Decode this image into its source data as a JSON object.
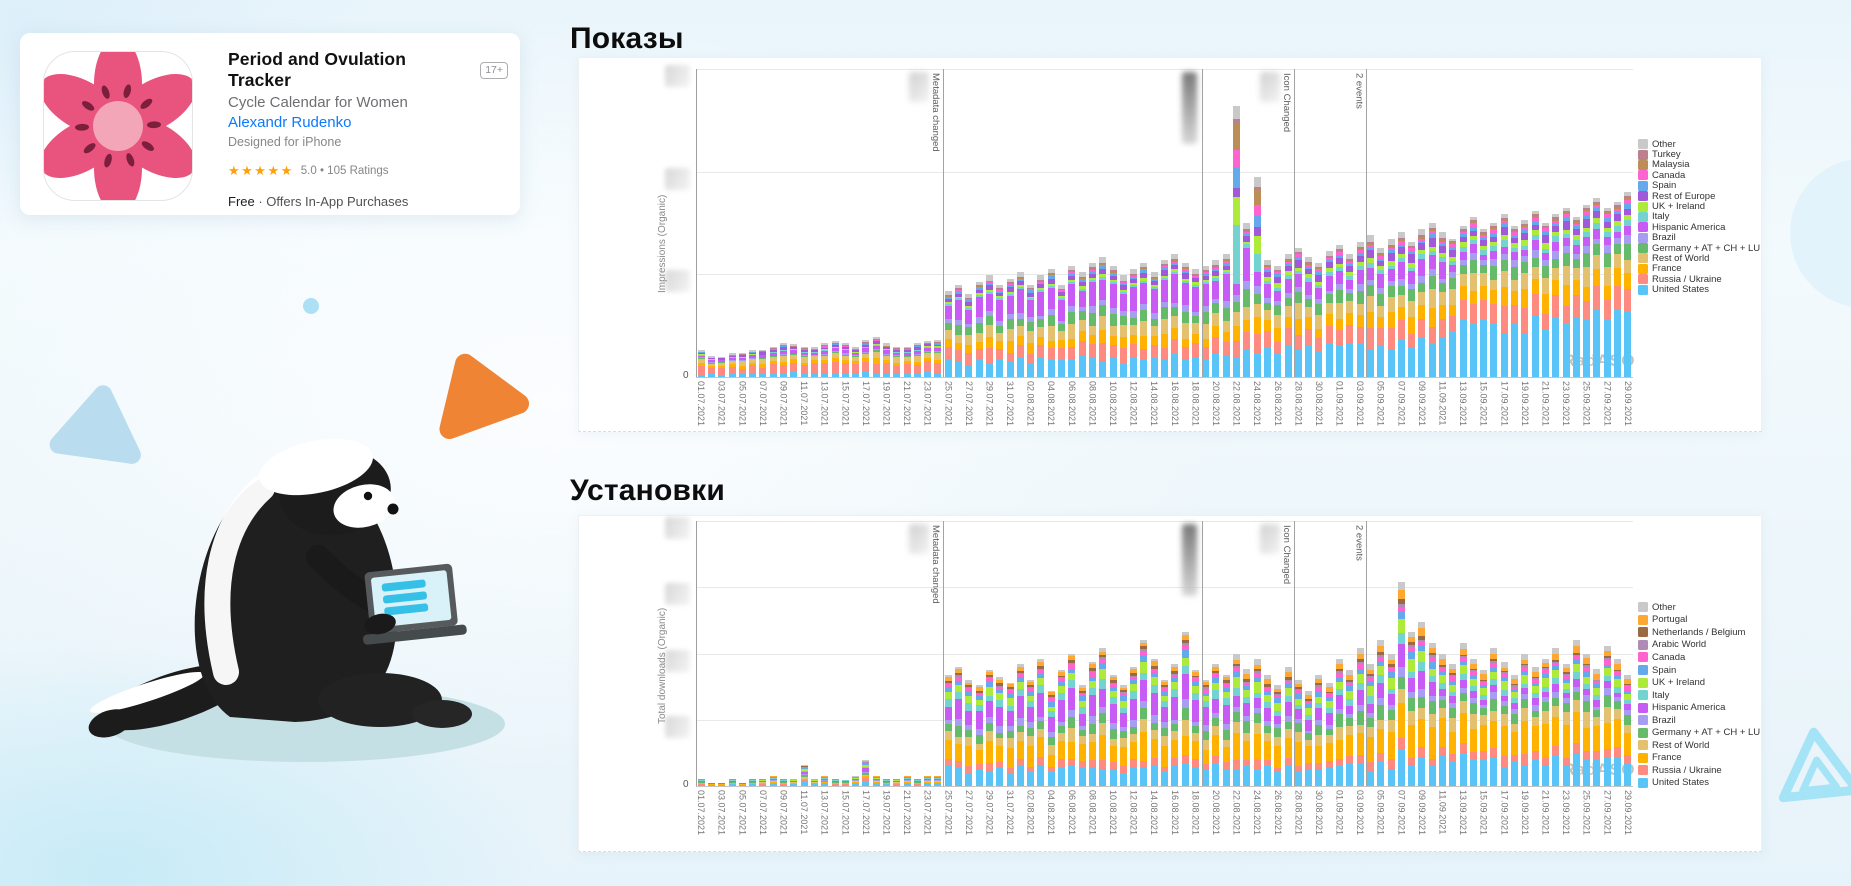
{
  "app_card": {
    "title": "Period and Ovulation Tracker",
    "age_badge": "17+",
    "subtitle": "Cycle Calendar for Women",
    "developer": "Alexandr Rudenko",
    "platform_note": "Designed for iPhone",
    "stars": "★★★★★",
    "rating_text": "5.0 • 105 Ratings",
    "price_bold": "Free",
    "price_rest": " · Offers In-App Purchases",
    "link_color": "#0a7aff",
    "star_color": "#ff9f0a",
    "flower_petal_color": "#e8547d",
    "flower_center_color": "#f2a6b7",
    "flower_seed_color": "#7c1f3d"
  },
  "sections": [
    {
      "title": "Показы"
    },
    {
      "title": "Установки"
    }
  ],
  "chart_data": [
    {
      "type": "bar",
      "stacked": true,
      "title": "Показы",
      "ylabel": "Impressions (Organic)",
      "watermark": "RadASO",
      "y_axis": {
        "zero_label": "0",
        "tick_labels_blurred": true,
        "gridline_rows": 3
      },
      "bar_count": 91,
      "x_labels": [
        "01.07.2021",
        "03.07.2021",
        "05.07.2021",
        "07.07.2021",
        "09.07.2021",
        "11.07.2021",
        "13.07.2021",
        "15.07.2021",
        "17.07.2021",
        "19.07.2021",
        "21.07.2021",
        "23.07.2021",
        "25.07.2021",
        "27.07.2021",
        "29.07.2021",
        "31.07.2021",
        "02.08.2021",
        "04.08.2021",
        "06.08.2021",
        "08.08.2021",
        "10.08.2021",
        "12.08.2021",
        "14.08.2021",
        "16.08.2021",
        "18.08.2021",
        "20.08.2021",
        "22.08.2021",
        "24.08.2021",
        "26.08.2021",
        "28.08.2021",
        "30.08.2021",
        "01.09.2021",
        "03.09.2021",
        "05.09.2021",
        "07.09.2021",
        "09.09.2021",
        "11.09.2021",
        "13.09.2021",
        "15.09.2021",
        "17.09.2021",
        "19.09.2021",
        "21.09.2021",
        "23.09.2021",
        "25.09.2021",
        "27.09.2021",
        "29.09.2021"
      ],
      "legend": [
        {
          "label": "Other",
          "color": "#c9c9c9"
        },
        {
          "label": "Turkey",
          "color": "#bb7f8d"
        },
        {
          "label": "Malaysia",
          "color": "#bc8d56"
        },
        {
          "label": "Canada",
          "color": "#ff63cf"
        },
        {
          "label": "Spain",
          "color": "#64a9ec"
        },
        {
          "label": "Rest of Europe",
          "color": "#a259d9"
        },
        {
          "label": "UK + Ireland",
          "color": "#aeea3a"
        },
        {
          "label": "Italy",
          "color": "#72d3d0"
        },
        {
          "label": "Hispanic America",
          "color": "#c95bf5"
        },
        {
          "label": "Brazil",
          "color": "#a79ef2"
        },
        {
          "label": "Germany + AT + CH + LU",
          "color": "#66bb6a"
        },
        {
          "label": "Rest of World",
          "color": "#e3c16f"
        },
        {
          "label": "France",
          "color": "#ffb300"
        },
        {
          "label": "Russia / Ukraine",
          "color": "#ff8a80"
        },
        {
          "label": "United States",
          "color": "#59c4f7"
        }
      ],
      "annotations": [
        {
          "position_day": 23.5,
          "label": "Metadata changed",
          "blur": "light"
        },
        {
          "position_day": 48.6,
          "label": "",
          "blur": "dark"
        },
        {
          "position_day": 57.6,
          "label": "Icon Changed",
          "blur": "light"
        },
        {
          "position_day": 64.6,
          "label": "2 events",
          "blur": "none"
        }
      ],
      "totals": [
        9,
        7,
        7,
        8,
        8,
        9,
        9,
        10,
        11,
        11,
        10,
        10,
        11,
        12,
        11,
        10,
        12,
        13,
        11,
        10,
        10,
        11,
        12,
        12,
        28,
        30,
        27,
        31,
        33,
        30,
        32,
        34,
        30,
        33,
        35,
        30,
        36,
        34,
        37,
        39,
        36,
        33,
        35,
        37,
        34,
        38,
        40,
        37,
        35,
        36,
        38,
        40,
        88,
        50,
        65,
        38,
        36,
        40,
        42,
        39,
        37,
        41,
        43,
        40,
        44,
        46,
        42,
        45,
        47,
        44,
        48,
        50,
        47,
        45,
        49,
        52,
        48,
        50,
        53,
        49,
        51,
        54,
        50,
        53,
        55,
        52,
        56,
        58,
        55,
        57,
        60
      ],
      "eras": [
        {
          "from": 0,
          "to": 23,
          "fractions": [
            0.12,
            0.28,
            0.1,
            0.14,
            0.03,
            0.03,
            0.08,
            0.02,
            0.02,
            0.06,
            0.02,
            0.01,
            0.01,
            0.02,
            0.06
          ]
        },
        {
          "from": 24,
          "to": 53,
          "fractions": [
            0.17,
            0.12,
            0.09,
            0.11,
            0.09,
            0.05,
            0.2,
            0.02,
            0.02,
            0.04,
            0.02,
            0.01,
            0.01,
            0.01,
            0.04
          ]
        },
        {
          "from": 54,
          "to": 72,
          "fractions": [
            0.24,
            0.13,
            0.1,
            0.1,
            0.08,
            0.04,
            0.1,
            0.03,
            0.03,
            0.05,
            0.02,
            0.02,
            0.01,
            0.01,
            0.04
          ]
        },
        {
          "from": 73,
          "to": 90,
          "fractions": [
            0.34,
            0.13,
            0.1,
            0.09,
            0.07,
            0.04,
            0.05,
            0.03,
            0.03,
            0.04,
            0.02,
            0.02,
            0.01,
            0.01,
            0.02
          ]
        }
      ],
      "overrides": {
        "52": [
          0.1,
          0.05,
          0.05,
          0.05,
          0.04,
          0.03,
          0.05,
          0.18,
          0.09,
          0.03,
          0.08,
          0.07,
          0.12,
          0.02,
          0.04
        ],
        "54": [
          0.14,
          0.08,
          0.07,
          0.06,
          0.05,
          0.04,
          0.08,
          0.12,
          0.07,
          0.04,
          0.06,
          0.05,
          0.08,
          0.02,
          0.04
        ]
      }
    },
    {
      "type": "bar",
      "stacked": true,
      "title": "Установки",
      "ylabel": "Total downloads (Organic)",
      "watermark": "RadASO",
      "y_axis": {
        "zero_label": "0",
        "tick_labels_blurred": true,
        "gridline_rows": 4
      },
      "bar_count": 91,
      "x_labels": [
        "01.07.2021",
        "03.07.2021",
        "05.07.2021",
        "07.07.2021",
        "09.07.2021",
        "11.07.2021",
        "13.07.2021",
        "15.07.2021",
        "17.07.2021",
        "19.07.2021",
        "21.07.2021",
        "23.07.2021",
        "25.07.2021",
        "27.07.2021",
        "29.07.2021",
        "31.07.2021",
        "02.08.2021",
        "04.08.2021",
        "06.08.2021",
        "08.08.2021",
        "10.08.2021",
        "12.08.2021",
        "14.08.2021",
        "16.08.2021",
        "18.08.2021",
        "20.08.2021",
        "22.08.2021",
        "24.08.2021",
        "26.08.2021",
        "28.08.2021",
        "30.08.2021",
        "01.09.2021",
        "03.09.2021",
        "05.09.2021",
        "07.09.2021",
        "09.09.2021",
        "11.09.2021",
        "13.09.2021",
        "15.09.2021",
        "17.09.2021",
        "19.09.2021",
        "21.09.2021",
        "23.09.2021",
        "25.09.2021",
        "27.09.2021",
        "29.09.2021"
      ],
      "legend": [
        {
          "label": "Other",
          "color": "#c9c9c9"
        },
        {
          "label": "Portugal",
          "color": "#ffa733"
        },
        {
          "label": "Netherlands / Belgium",
          "color": "#9a6b43"
        },
        {
          "label": "Arabic World",
          "color": "#b08cb4"
        },
        {
          "label": "Canada",
          "color": "#ff63cf"
        },
        {
          "label": "Spain",
          "color": "#64a9ec"
        },
        {
          "label": "UK + Ireland",
          "color": "#aeea3a"
        },
        {
          "label": "Italy",
          "color": "#72d3d0"
        },
        {
          "label": "Hispanic America",
          "color": "#c95bf5"
        },
        {
          "label": "Brazil",
          "color": "#a79ef2"
        },
        {
          "label": "Germany + AT + CH + LU",
          "color": "#66bb6a"
        },
        {
          "label": "Rest of World",
          "color": "#e3c16f"
        },
        {
          "label": "France",
          "color": "#ffb300"
        },
        {
          "label": "Russia / Ukraine",
          "color": "#ff8a80"
        },
        {
          "label": "United States",
          "color": "#59c4f7"
        }
      ],
      "annotations": [
        {
          "position_day": 23.5,
          "label": "Metadata changed",
          "blur": "light"
        },
        {
          "position_day": 48.6,
          "label": "",
          "blur": "dark"
        },
        {
          "position_day": 57.6,
          "label": "Icon Changed",
          "blur": "light"
        },
        {
          "position_day": 64.6,
          "label": "2 events",
          "blur": "none"
        }
      ],
      "totals": [
        3,
        2,
        2,
        3,
        2,
        3,
        3,
        4,
        3,
        3,
        8,
        3,
        4,
        3,
        3,
        4,
        10,
        4,
        3,
        3,
        4,
        3,
        4,
        4,
        42,
        45,
        40,
        38,
        44,
        41,
        39,
        46,
        40,
        48,
        36,
        44,
        50,
        38,
        47,
        52,
        42,
        38,
        45,
        55,
        48,
        40,
        46,
        58,
        44,
        40,
        46,
        42,
        50,
        44,
        48,
        42,
        38,
        45,
        40,
        36,
        42,
        39,
        48,
        44,
        52,
        46,
        55,
        50,
        77,
        58,
        62,
        54,
        50,
        46,
        54,
        48,
        44,
        52,
        47,
        42,
        50,
        45,
        48,
        52,
        46,
        55,
        50,
        44,
        53,
        48,
        42
      ],
      "eras": [
        {
          "from": 0,
          "to": 23,
          "fractions": [
            0.18,
            0.1,
            0.08,
            0.08,
            0.06,
            0.05,
            0.12,
            0.05,
            0.07,
            0.05,
            0.04,
            0.02,
            0.02,
            0.04,
            0.04
          ]
        },
        {
          "from": 24,
          "to": 51,
          "fractions": [
            0.15,
            0.06,
            0.16,
            0.08,
            0.07,
            0.05,
            0.16,
            0.06,
            0.06,
            0.04,
            0.03,
            0.01,
            0.02,
            0.03,
            0.02
          ]
        },
        {
          "from": 52,
          "to": 71,
          "fractions": [
            0.16,
            0.06,
            0.18,
            0.08,
            0.08,
            0.04,
            0.1,
            0.05,
            0.07,
            0.04,
            0.03,
            0.01,
            0.02,
            0.04,
            0.04
          ]
        },
        {
          "from": 72,
          "to": 90,
          "fractions": [
            0.2,
            0.07,
            0.22,
            0.09,
            0.07,
            0.04,
            0.05,
            0.04,
            0.06,
            0.03,
            0.03,
            0.01,
            0.01,
            0.04,
            0.04
          ]
        }
      ],
      "overrides": {}
    }
  ],
  "mascot": {
    "name": "honey badger with laptop",
    "body_color": "#1f1f1f",
    "stripe_color": "#ffffff",
    "laptop_color": "#565a5c",
    "screen_color": "#d9f1f8",
    "screen_lines_color": "#35c0e8",
    "shadow_color": "#c5e0e4"
  },
  "decor": {
    "triangle_left_color": "#b9dcee",
    "triangle_orange_color": "#ee8434",
    "triangle_outline_color": "#a5e3f6",
    "dot_color": "#aee0f5",
    "circle_right_color": "#e2f3fb"
  }
}
